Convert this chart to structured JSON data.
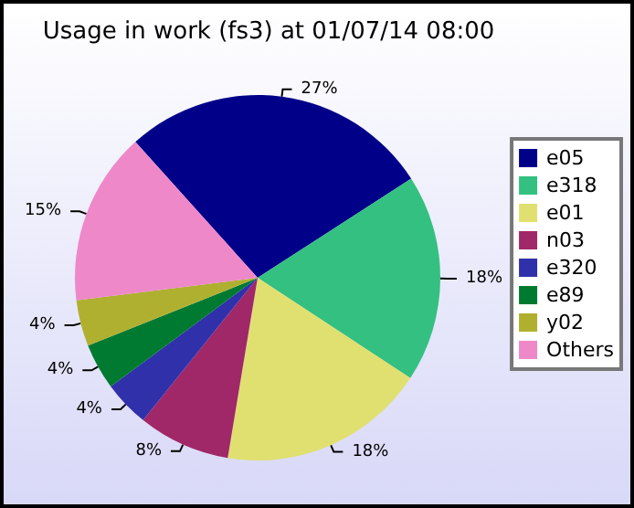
{
  "chart_data": {
    "type": "pie",
    "title": "Usage in work (fs3) at 01/07/14 08:00",
    "categories": [
      "e05",
      "e318",
      "e01",
      "n03",
      "e320",
      "e89",
      "y02",
      "Others"
    ],
    "values": [
      27,
      18,
      18,
      8,
      4,
      4,
      4,
      15
    ],
    "colors": [
      "#000088",
      "#33c080",
      "#e0e070",
      "#a02868",
      "#3030aa",
      "#007a30",
      "#b0b030",
      "#ee88c8"
    ],
    "value_labels": [
      "27%",
      "18%",
      "18%",
      "8%",
      "4%",
      "4%",
      "4%",
      "15%"
    ],
    "legend": "right"
  }
}
